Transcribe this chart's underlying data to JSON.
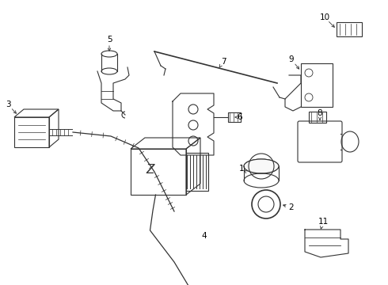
{
  "bg_color": "#ffffff",
  "line_color": "#333333",
  "label_color": "#000000",
  "fig_w": 4.9,
  "fig_h": 3.6,
  "dpi": 100
}
